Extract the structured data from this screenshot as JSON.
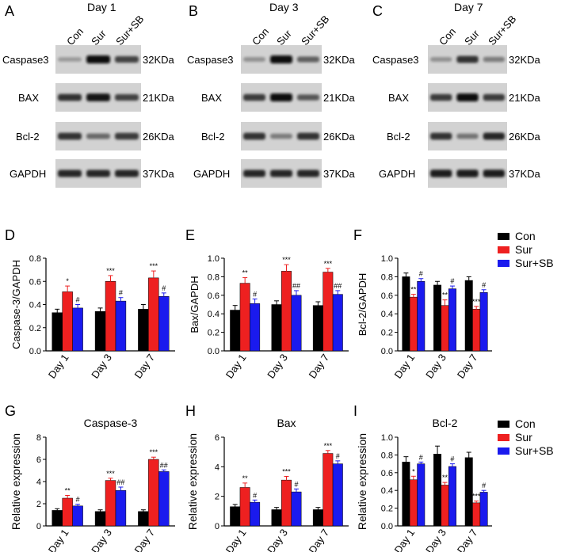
{
  "panels": [
    "A",
    "B",
    "C",
    "D",
    "E",
    "F",
    "G",
    "H",
    "I"
  ],
  "blots": [
    {
      "title": "Day 1",
      "lanes": [
        "Con",
        "Sur",
        "Sur+SB"
      ]
    },
    {
      "title": "Day 3",
      "lanes": [
        "Con",
        "Sur",
        "Sur+SB"
      ]
    },
    {
      "title": "Day 7",
      "lanes": [
        "Con",
        "Sur",
        "Sur+SB"
      ]
    }
  ],
  "proteins": [
    "Caspase3",
    "BAX",
    "Bcl-2",
    "GAPDH"
  ],
  "weights": [
    "32KDa",
    "21KDa",
    "26KDa",
    "37KDa"
  ],
  "band_intensity": [
    [
      [
        0.25,
        1.0,
        0.7
      ],
      [
        0.8,
        0.95,
        0.7
      ],
      [
        0.8,
        0.5,
        0.75
      ],
      [
        0.85,
        0.85,
        0.85
      ]
    ],
    [
      [
        0.3,
        1.0,
        0.55
      ],
      [
        0.75,
        1.0,
        0.6
      ],
      [
        0.8,
        0.4,
        0.8
      ],
      [
        0.85,
        0.85,
        0.85
      ]
    ],
    [
      [
        0.3,
        0.8,
        0.4
      ],
      [
        0.75,
        1.0,
        0.75
      ],
      [
        0.8,
        0.45,
        0.85
      ],
      [
        0.9,
        0.9,
        0.9
      ]
    ]
  ],
  "legend": {
    "con": "Con",
    "sur": "Sur",
    "sursb": "Sur+SB"
  },
  "colors": {
    "con": "#000000",
    "sur": "#ee2020",
    "sursb": "#1a1aee"
  },
  "chart_data": [
    {
      "panel": "D",
      "type": "bar",
      "title": "",
      "ylabel": "Caspase-3/GAPDH",
      "ylim": [
        0,
        0.8
      ],
      "yticks": [
        "0.0",
        "0.2",
        "0.4",
        "0.6",
        "0.8"
      ],
      "categories": [
        "Day 1",
        "Day 3",
        "Day 7"
      ],
      "series": [
        {
          "name": "Con",
          "values": [
            0.33,
            0.34,
            0.36
          ],
          "errors": [
            0.03,
            0.03,
            0.04
          ]
        },
        {
          "name": "Sur",
          "values": [
            0.51,
            0.6,
            0.63
          ],
          "errors": [
            0.05,
            0.05,
            0.06
          ]
        },
        {
          "name": "Sur+SB",
          "values": [
            0.37,
            0.43,
            0.47
          ],
          "errors": [
            0.03,
            0.03,
            0.03
          ]
        }
      ],
      "marks": [
        [
          "",
          "*",
          "#"
        ],
        [
          "",
          "***",
          "#"
        ],
        [
          "",
          "***",
          "#"
        ]
      ]
    },
    {
      "panel": "E",
      "type": "bar",
      "title": "",
      "ylabel": "Bax/GAPDH",
      "ylim": [
        0,
        1.0
      ],
      "yticks": [
        "0.0",
        "0.2",
        "0.4",
        "0.6",
        "0.8",
        "1.0"
      ],
      "categories": [
        "Day 1",
        "Day 3",
        "Day 7"
      ],
      "series": [
        {
          "name": "Con",
          "values": [
            0.44,
            0.5,
            0.49
          ],
          "errors": [
            0.05,
            0.04,
            0.04
          ]
        },
        {
          "name": "Sur",
          "values": [
            0.73,
            0.86,
            0.85
          ],
          "errors": [
            0.06,
            0.07,
            0.04
          ]
        },
        {
          "name": "Sur+SB",
          "values": [
            0.51,
            0.6,
            0.61
          ],
          "errors": [
            0.05,
            0.05,
            0.04
          ]
        }
      ],
      "marks": [
        [
          "",
          "**",
          "#"
        ],
        [
          "",
          "***",
          "##"
        ],
        [
          "",
          "***",
          "##"
        ]
      ]
    },
    {
      "panel": "F",
      "type": "bar",
      "title": "",
      "ylabel": "Bcl-2/GAPDH",
      "ylim": [
        0,
        1.0
      ],
      "yticks": [
        "0.0",
        "0.2",
        "0.4",
        "0.6",
        "0.8",
        "1.0"
      ],
      "categories": [
        "Day 1",
        "Day 3",
        "Day 7"
      ],
      "series": [
        {
          "name": "Con",
          "values": [
            0.8,
            0.71,
            0.76
          ],
          "errors": [
            0.04,
            0.04,
            0.04
          ]
        },
        {
          "name": "Sur",
          "values": [
            0.58,
            0.49,
            0.45
          ],
          "errors": [
            0.03,
            0.06,
            0.03
          ]
        },
        {
          "name": "Sur+SB",
          "values": [
            0.75,
            0.67,
            0.63
          ],
          "errors": [
            0.03,
            0.03,
            0.03
          ]
        }
      ],
      "marks": [
        [
          "",
          "**",
          "#"
        ],
        [
          "",
          "**",
          "#"
        ],
        [
          "",
          "***",
          "#"
        ]
      ]
    },
    {
      "panel": "G",
      "type": "bar",
      "title": "Caspase-3",
      "ylabel": "Relative expression",
      "ylim": [
        0,
        8
      ],
      "yticks": [
        "0",
        "2",
        "4",
        "6",
        "8"
      ],
      "categories": [
        "Day 1",
        "Day 3",
        "Day 7"
      ],
      "series": [
        {
          "name": "Con",
          "values": [
            1.4,
            1.3,
            1.3
          ],
          "errors": [
            0.15,
            0.15,
            0.15
          ]
        },
        {
          "name": "Sur",
          "values": [
            2.5,
            4.1,
            6.0
          ],
          "errors": [
            0.25,
            0.2,
            0.2
          ]
        },
        {
          "name": "Sur+SB",
          "values": [
            1.8,
            3.2,
            4.9
          ],
          "errors": [
            0.15,
            0.3,
            0.15
          ]
        }
      ],
      "marks": [
        [
          "",
          "**",
          "#"
        ],
        [
          "",
          "***",
          "##"
        ],
        [
          "",
          "***",
          "##"
        ]
      ]
    },
    {
      "panel": "H",
      "type": "bar",
      "title": "Bax",
      "ylabel": "Relative expression",
      "ylim": [
        0,
        6
      ],
      "yticks": [
        "0",
        "2",
        "4",
        "6"
      ],
      "categories": [
        "Day 1",
        "Day 3",
        "Day 7"
      ],
      "series": [
        {
          "name": "Con",
          "values": [
            1.3,
            1.1,
            1.1
          ],
          "errors": [
            0.15,
            0.15,
            0.15
          ]
        },
        {
          "name": "Sur",
          "values": [
            2.6,
            3.1,
            4.9
          ],
          "errors": [
            0.3,
            0.25,
            0.2
          ]
        },
        {
          "name": "Sur+SB",
          "values": [
            1.6,
            2.3,
            4.2
          ],
          "errors": [
            0.15,
            0.2,
            0.2
          ]
        }
      ],
      "marks": [
        [
          "",
          "**",
          "#"
        ],
        [
          "",
          "***",
          "#"
        ],
        [
          "",
          "***",
          "#"
        ]
      ]
    },
    {
      "panel": "I",
      "type": "bar",
      "title": "Bcl-2",
      "ylabel": "Relative expression",
      "ylim": [
        0,
        1.0
      ],
      "yticks": [
        "0.0",
        "0.2",
        "0.4",
        "0.6",
        "0.8",
        "1.0"
      ],
      "categories": [
        "Day 1",
        "Day 3",
        "Day 7"
      ],
      "series": [
        {
          "name": "Con",
          "values": [
            0.72,
            0.81,
            0.77
          ],
          "errors": [
            0.06,
            0.09,
            0.06
          ]
        },
        {
          "name": "Sur",
          "values": [
            0.52,
            0.46,
            0.26
          ],
          "errors": [
            0.04,
            0.03,
            0.02
          ]
        },
        {
          "name": "Sur+SB",
          "values": [
            0.7,
            0.67,
            0.38
          ],
          "errors": [
            0.02,
            0.03,
            0.02
          ]
        }
      ],
      "marks": [
        [
          "",
          "*",
          "#"
        ],
        [
          "",
          "**",
          "#"
        ],
        [
          "",
          "***",
          "#"
        ]
      ]
    }
  ]
}
